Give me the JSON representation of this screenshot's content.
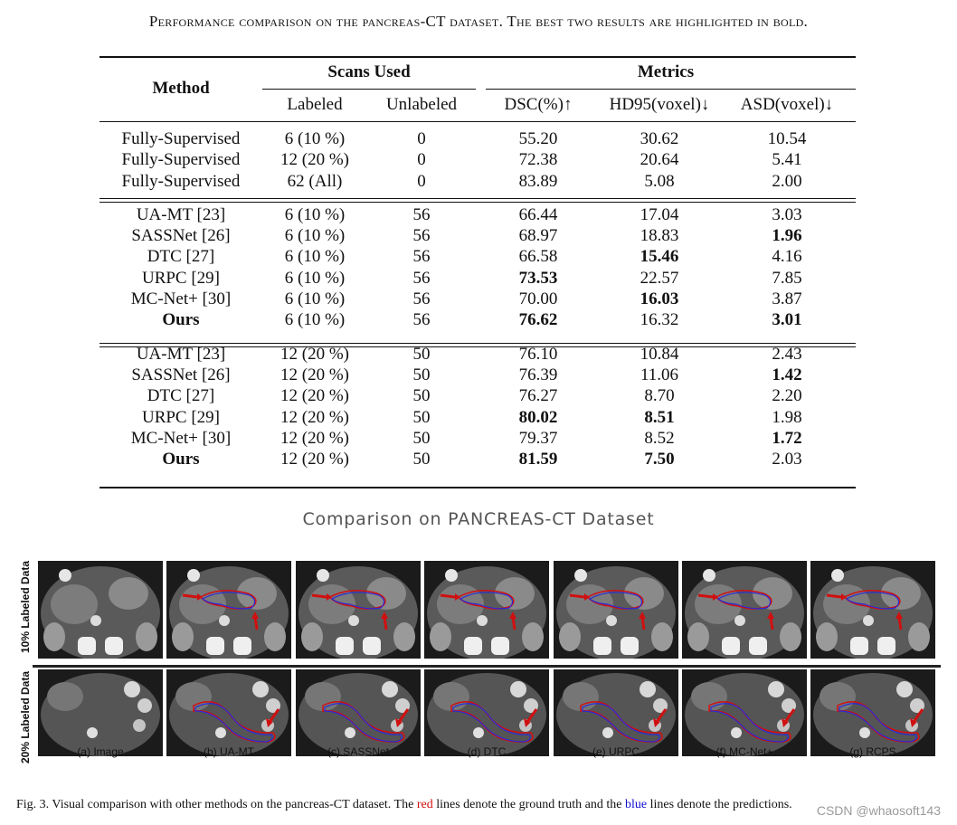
{
  "caption_top": "Performance comparison on the pancreas-CT dataset. The best two results are highlighted in bold.",
  "table": {
    "header_method": "Method",
    "header_scans": "Scans Used",
    "header_metrics": "Metrics",
    "subheaders": [
      "Labeled",
      "Unlabeled",
      "DSC(%)↑",
      "HD95(voxel)↓",
      "ASD(voxel)↓"
    ],
    "groups": [
      [
        {
          "method": "Fully-Supervised",
          "labeled": "6 (10 %)",
          "unlabeled": "0",
          "dsc": "55.20",
          "hd95": "30.62",
          "asd": "10.54",
          "bold": []
        },
        {
          "method": "Fully-Supervised",
          "labeled": "12 (20 %)",
          "unlabeled": "0",
          "dsc": "72.38",
          "hd95": "20.64",
          "asd": "5.41",
          "bold": []
        },
        {
          "method": "Fully-Supervised",
          "labeled": "62 (All)",
          "unlabeled": "0",
          "dsc": "83.89",
          "hd95": "5.08",
          "asd": "2.00",
          "bold": []
        }
      ],
      [
        {
          "method": "UA-MT [23]",
          "labeled": "6 (10 %)",
          "unlabeled": "56",
          "dsc": "66.44",
          "hd95": "17.04",
          "asd": "3.03",
          "bold": []
        },
        {
          "method": "SASSNet [26]",
          "labeled": "6 (10 %)",
          "unlabeled": "56",
          "dsc": "68.97",
          "hd95": "18.83",
          "asd": "1.96",
          "bold": [
            "asd"
          ]
        },
        {
          "method": "DTC [27]",
          "labeled": "6 (10 %)",
          "unlabeled": "56",
          "dsc": "66.58",
          "hd95": "15.46",
          "asd": "4.16",
          "bold": [
            "hd95"
          ]
        },
        {
          "method": "URPC [29]",
          "labeled": "6 (10 %)",
          "unlabeled": "56",
          "dsc": "73.53",
          "hd95": "22.57",
          "asd": "7.85",
          "bold": [
            "dsc"
          ]
        },
        {
          "method": "MC-Net+ [30]",
          "labeled": "6 (10 %)",
          "unlabeled": "56",
          "dsc": "70.00",
          "hd95": "16.03",
          "asd": "3.87",
          "bold": [
            "hd95"
          ]
        },
        {
          "method": "Ours",
          "labeled": "6 (10 %)",
          "unlabeled": "56",
          "dsc": "76.62",
          "hd95": "16.32",
          "asd": "3.01",
          "bold": [
            "method",
            "dsc",
            "asd"
          ]
        }
      ],
      [
        {
          "method": "UA-MT [23]",
          "labeled": "12 (20 %)",
          "unlabeled": "50",
          "dsc": "76.10",
          "hd95": "10.84",
          "asd": "2.43",
          "bold": []
        },
        {
          "method": "SASSNet [26]",
          "labeled": "12 (20 %)",
          "unlabeled": "50",
          "dsc": "76.39",
          "hd95": "11.06",
          "asd": "1.42",
          "bold": [
            "asd"
          ]
        },
        {
          "method": "DTC [27]",
          "labeled": "12 (20 %)",
          "unlabeled": "50",
          "dsc": "76.27",
          "hd95": "8.70",
          "asd": "2.20",
          "bold": []
        },
        {
          "method": "URPC [29]",
          "labeled": "12 (20 %)",
          "unlabeled": "50",
          "dsc": "80.02",
          "hd95": "8.51",
          "asd": "1.98",
          "bold": [
            "dsc",
            "hd95"
          ]
        },
        {
          "method": "MC-Net+ [30]",
          "labeled": "12 (20 %)",
          "unlabeled": "50",
          "dsc": "79.37",
          "hd95": "8.52",
          "asd": "1.72",
          "bold": [
            "asd"
          ]
        },
        {
          "method": "Ours",
          "labeled": "12 (20 %)",
          "unlabeled": "50",
          "dsc": "81.59",
          "hd95": "7.50",
          "asd": "2.03",
          "bold": [
            "method",
            "dsc",
            "hd95"
          ]
        }
      ]
    ]
  },
  "sub_caption": "Comparison on PANCREAS-CT Dataset",
  "figure": {
    "row_labels": [
      "10% Labeled Data",
      "20% Labeled Data"
    ],
    "column_captions": [
      "(a) Image",
      "(b) UA-MT",
      "(c) SASSNet",
      "(d) DTC",
      "(e) URPC",
      "(f) MC-Net+",
      "(g) RCPS"
    ]
  },
  "fig_caption": {
    "prefix": "Fig. 3.  Visual comparison with other methods on the pancreas-CT dataset. The ",
    "red_word": "red",
    "middle": " lines denote the ground truth and the ",
    "blue_word": "blue",
    "suffix": " lines denote the predictions."
  },
  "watermark": "CSDN @whaosoft143",
  "colors": {
    "ground_truth": "#d01010",
    "prediction": "#2a2ad8"
  }
}
